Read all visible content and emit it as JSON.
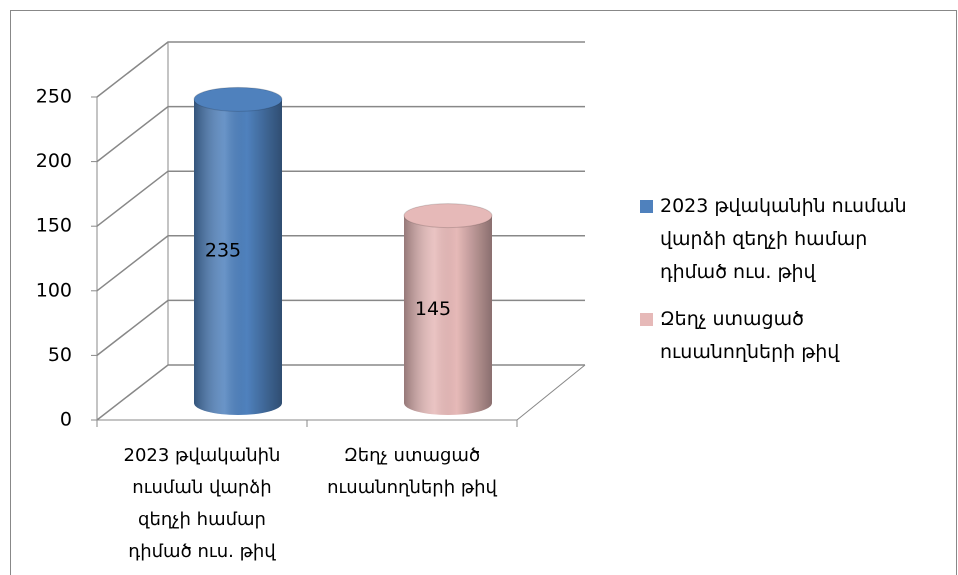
{
  "chart_data": {
    "type": "bar3d",
    "categories": [
      "2023 թվականին ուսման վարձի զեղչի համար դիմած ուս. թիվ",
      "Զեղչ ստացած ուսանողների թիվ"
    ],
    "values": [
      235,
      145
    ],
    "colors": [
      "#4f81bd",
      "#e6b9b8"
    ],
    "ylim": [
      0,
      250
    ],
    "yticks": [
      0,
      50,
      100,
      150,
      200,
      250
    ],
    "grid": true,
    "legend": "right"
  }
}
